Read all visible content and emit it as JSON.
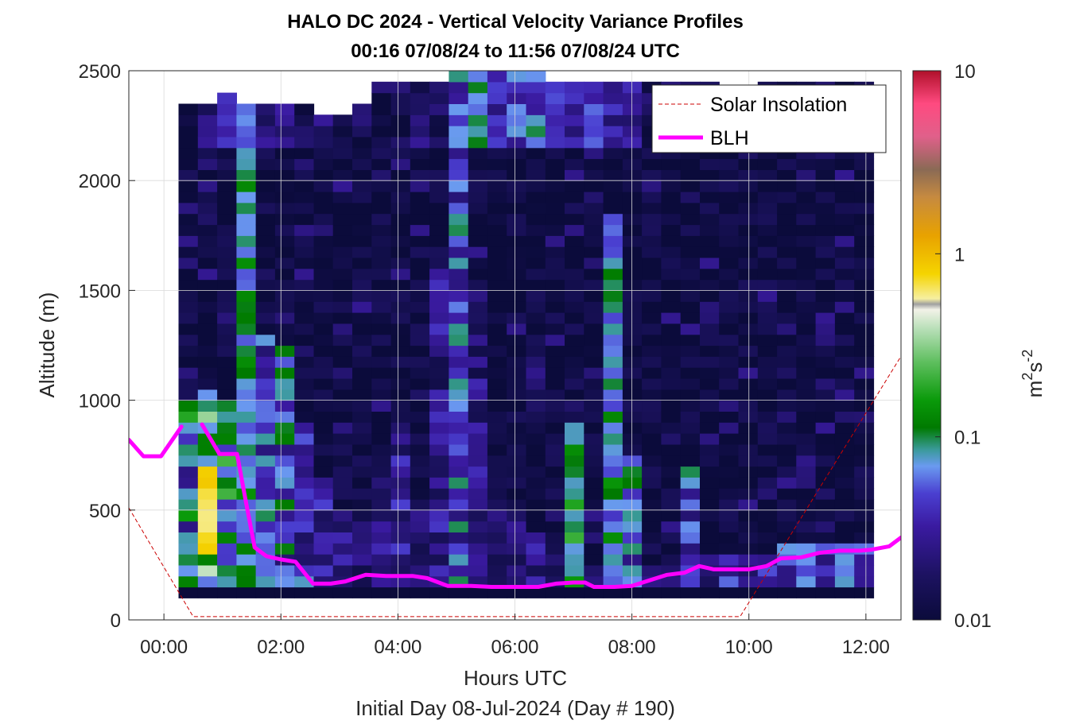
{
  "chart_data": {
    "type": "heatmap",
    "title": "HALO DC 2024 - Vertical Velocity Variance Profiles",
    "subtitle": "00:16 07/08/24 to 11:56 07/08/24  UTC",
    "xlabel": "Hours UTC",
    "xlabel2": "Initial Day 08-Jul-2024 (Day # 190)",
    "ylabel": "Altitude (m)",
    "xlim_hours": [
      -0.6,
      12.6
    ],
    "ylim": [
      0,
      2500
    ],
    "x_ticks": [
      {
        "value": 0,
        "label": "00:00"
      },
      {
        "value": 2,
        "label": "02:00"
      },
      {
        "value": 4,
        "label": "04:00"
      },
      {
        "value": 6,
        "label": "06:00"
      },
      {
        "value": 8,
        "label": "08:00"
      },
      {
        "value": 10,
        "label": "10:00"
      },
      {
        "value": 12,
        "label": "12:00"
      }
    ],
    "y_ticks": [
      {
        "value": 0,
        "label": "0"
      },
      {
        "value": 500,
        "label": "500"
      },
      {
        "value": 1000,
        "label": "1000"
      },
      {
        "value": 1500,
        "label": "1500"
      },
      {
        "value": 2000,
        "label": "2000"
      },
      {
        "value": 2500,
        "label": "2500"
      }
    ],
    "grid": true,
    "colorbar": {
      "scale": "log",
      "range": [
        0.01,
        10
      ],
      "unit_main": "m",
      "unit_sup1": "2",
      "unit_mid": "s",
      "unit_sup2": "-2",
      "ticks": [
        {
          "value": 0.01,
          "label": "0.01"
        },
        {
          "value": 0.1,
          "label": "0.1"
        },
        {
          "value": 1,
          "label": "1"
        },
        {
          "value": 10,
          "label": "10"
        }
      ]
    },
    "legend": {
      "position": "top-right",
      "items": [
        {
          "name": "Solar Insolation",
          "color": "#cc0000",
          "style": "dashed"
        },
        {
          "name": "BLH",
          "color": "#ff00ff",
          "style": "solid"
        }
      ]
    },
    "blh_segments": [
      [
        [
          -0.6,
          820
        ],
        [
          -0.35,
          745
        ],
        [
          -0.05,
          745
        ],
        [
          0.3,
          880
        ]
      ],
      [
        [
          0.65,
          890
        ],
        [
          0.95,
          755
        ],
        [
          1.25,
          755
        ],
        [
          1.4,
          540
        ],
        [
          1.55,
          330
        ],
        [
          1.75,
          290
        ],
        [
          2.0,
          275
        ],
        [
          2.25,
          265
        ],
        [
          2.55,
          165
        ],
        [
          2.85,
          165
        ],
        [
          3.1,
          175
        ],
        [
          3.45,
          205
        ],
        [
          3.8,
          200
        ],
        [
          4.25,
          200
        ],
        [
          4.5,
          190
        ],
        [
          4.85,
          155
        ],
        [
          5.25,
          155
        ],
        [
          5.6,
          150
        ],
        [
          6.0,
          150
        ],
        [
          6.4,
          150
        ],
        [
          6.7,
          165
        ],
        [
          7.0,
          170
        ],
        [
          7.2,
          170
        ],
        [
          7.35,
          150
        ],
        [
          7.7,
          150
        ],
        [
          8.0,
          155
        ],
        [
          8.3,
          180
        ],
        [
          8.6,
          205
        ],
        [
          8.9,
          215
        ],
        [
          9.15,
          245
        ],
        [
          9.4,
          230
        ],
        [
          9.7,
          230
        ],
        [
          10.0,
          230
        ],
        [
          10.3,
          245
        ],
        [
          10.55,
          280
        ],
        [
          10.9,
          285
        ],
        [
          11.2,
          305
        ],
        [
          11.55,
          315
        ],
        [
          11.9,
          315
        ],
        [
          12.1,
          320
        ],
        [
          12.4,
          335
        ],
        [
          12.6,
          375
        ]
      ]
    ],
    "solar_insolation": [
      [
        -0.6,
        510
      ],
      [
        0.5,
        15
      ],
      [
        9.85,
        15
      ],
      [
        12.6,
        1200
      ]
    ],
    "heatmap": {
      "x_start": 0.25,
      "x_end": 11.9,
      "y_start": 100,
      "y_end": 2500,
      "col_width_hours": 0.33,
      "row_height_m": 50,
      "columns": [
        {
          "hour": 0.25,
          "top": 2350,
          "bl": 1000,
          "bl_band": [
            0.02,
            0.2
          ],
          "mix_top": 0.0,
          "hot": false
        },
        {
          "hour": 0.58,
          "top": 2350,
          "bl": 1050,
          "bl_band": [
            0.05,
            0.6
          ],
          "mix_top": 0.02,
          "hot": true
        },
        {
          "hour": 0.91,
          "top": 2400,
          "bl": 1000,
          "bl_band": [
            0.04,
            0.3
          ],
          "mix_top": 0.03,
          "hot": false
        },
        {
          "hour": 1.24,
          "top": 2350,
          "bl": 2300,
          "bl_band": [
            0.05,
            0.15
          ],
          "mix_top": 0.08,
          "hot": false
        },
        {
          "hour": 1.57,
          "top": 2350,
          "bl": 1300,
          "bl_band": [
            0.02,
            0.1
          ],
          "mix_top": 0.03,
          "hot": false
        },
        {
          "hour": 1.9,
          "top": 2350,
          "bl": 1250,
          "bl_band": [
            0.02,
            0.12
          ],
          "mix_top": 0.03,
          "hot": false
        },
        {
          "hour": 2.23,
          "top": 2350,
          "bl": 900,
          "bl_band": [
            0.015,
            0.08
          ],
          "mix_top": 0.02,
          "hot": false
        },
        {
          "hour": 2.56,
          "top": 2300,
          "bl": 600,
          "bl_band": [
            0.015,
            0.05
          ],
          "mix_top": 0.02,
          "hot": false
        },
        {
          "hour": 2.89,
          "top": 2300,
          "bl": 500,
          "bl_band": [
            0.012,
            0.04
          ],
          "mix_top": 0.02,
          "hot": false
        },
        {
          "hour": 3.22,
          "top": 2350,
          "bl": 450,
          "bl_band": [
            0.012,
            0.04
          ],
          "mix_top": 0.015,
          "hot": false
        },
        {
          "hour": 3.55,
          "top": 2450,
          "bl": 650,
          "bl_band": [
            0.012,
            0.05
          ],
          "mix_top": 0.015,
          "hot": false
        },
        {
          "hour": 3.88,
          "top": 2450,
          "bl": 900,
          "bl_band": [
            0.015,
            0.05
          ],
          "mix_top": 0.015,
          "hot": false
        },
        {
          "hour": 4.21,
          "top": 2450,
          "bl": 500,
          "bl_band": [
            0.012,
            0.03
          ],
          "mix_top": 0.02,
          "hot": false
        },
        {
          "hour": 4.54,
          "top": 2450,
          "bl": 1600,
          "bl_band": [
            0.012,
            0.05
          ],
          "mix_top": 0.015,
          "hot": false
        },
        {
          "hour": 4.87,
          "top": 2500,
          "bl": 2500,
          "bl_band": [
            0.02,
            0.1
          ],
          "mix_top": 0.08,
          "hot": false
        },
        {
          "hour": 5.2,
          "top": 2500,
          "bl": 1500,
          "bl_band": [
            0.012,
            0.05
          ],
          "mix_top": 0.08,
          "hot": false
        },
        {
          "hour": 5.53,
          "top": 2500,
          "bl": 450,
          "bl_band": [
            0.012,
            0.03
          ],
          "mix_top": 0.04,
          "hot": false
        },
        {
          "hour": 5.86,
          "top": 2500,
          "bl": 550,
          "bl_band": [
            0.012,
            0.03
          ],
          "mix_top": 0.05,
          "hot": false
        },
        {
          "hour": 6.19,
          "top": 2500,
          "bl": 400,
          "bl_band": [
            0.012,
            0.04
          ],
          "mix_top": 0.06,
          "hot": false
        },
        {
          "hour": 6.52,
          "top": 2450,
          "bl": 350,
          "bl_band": [
            0.012,
            0.03
          ],
          "mix_top": 0.04,
          "hot": false
        },
        {
          "hour": 6.85,
          "top": 2450,
          "bl": 900,
          "bl_band": [
            0.05,
            0.25
          ],
          "mix_top": 0.03,
          "hot": false
        },
        {
          "hour": 7.18,
          "top": 2450,
          "bl": 250,
          "bl_band": [
            0.012,
            0.03
          ],
          "mix_top": 0.04,
          "hot": false
        },
        {
          "hour": 7.51,
          "top": 2450,
          "bl": 1850,
          "bl_band": [
            0.04,
            0.15
          ],
          "mix_top": 0.03,
          "hot": false
        },
        {
          "hour": 7.84,
          "top": 2450,
          "bl": 750,
          "bl_band": [
            0.02,
            0.12
          ],
          "mix_top": 0.02,
          "hot": false
        },
        {
          "hour": 8.17,
          "top": 2450,
          "bl": 250,
          "bl_band": [
            0.012,
            0.03
          ],
          "mix_top": 0.015,
          "hot": false
        },
        {
          "hour": 8.5,
          "top": 2450,
          "bl": 300,
          "bl_band": [
            0.012,
            0.03
          ],
          "mix_top": 0.015,
          "hot": false
        },
        {
          "hour": 8.83,
          "top": 2450,
          "bl": 700,
          "bl_band": [
            0.02,
            0.1
          ],
          "mix_top": 0.012,
          "hot": false
        },
        {
          "hour": 9.16,
          "top": 2450,
          "bl": 300,
          "bl_band": [
            0.012,
            0.03
          ],
          "mix_top": 0.012,
          "hot": false
        },
        {
          "hour": 9.49,
          "top": 2400,
          "bl": 300,
          "bl_band": [
            0.015,
            0.06
          ],
          "mix_top": 0.012,
          "hot": false
        },
        {
          "hour": 9.82,
          "top": 2400,
          "bl": 300,
          "bl_band": [
            0.015,
            0.06
          ],
          "mix_top": 0.012,
          "hot": false
        },
        {
          "hour": 10.15,
          "top": 2450,
          "bl": 300,
          "bl_band": [
            0.02,
            0.06
          ],
          "mix_top": 0.012,
          "hot": false
        },
        {
          "hour": 10.48,
          "top": 2450,
          "bl": 350,
          "bl_band": [
            0.02,
            0.08
          ],
          "mix_top": 0.015,
          "hot": false
        },
        {
          "hour": 10.81,
          "top": 2450,
          "bl": 350,
          "bl_band": [
            0.02,
            0.08
          ],
          "mix_top": 0.012,
          "hot": false
        },
        {
          "hour": 11.14,
          "top": 2450,
          "bl": 350,
          "bl_band": [
            0.02,
            0.08
          ],
          "mix_top": 0.015,
          "hot": false
        },
        {
          "hour": 11.47,
          "top": 2450,
          "bl": 350,
          "bl_band": [
            0.02,
            0.08
          ],
          "mix_top": 0.015,
          "hot": false
        },
        {
          "hour": 11.8,
          "top": 2450,
          "bl": 350,
          "bl_band": [
            0.02,
            0.08
          ],
          "mix_top": 0.015,
          "hot": false
        }
      ]
    }
  }
}
